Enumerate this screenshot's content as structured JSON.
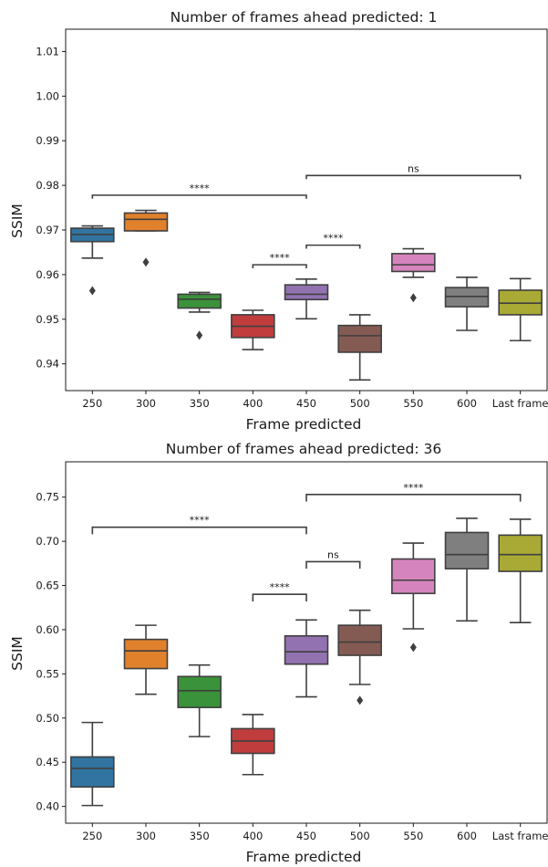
{
  "chart_data": [
    {
      "type": "box",
      "title": "Number of frames ahead predicted: 1",
      "xlabel": "Frame predicted",
      "ylabel": "SSIM",
      "ylim": [
        0.934,
        1.015
      ],
      "yticks": [
        "0.94",
        "0.95",
        "0.96",
        "0.97",
        "0.98",
        "0.99",
        "1.00",
        "1.01"
      ],
      "categories": [
        "250",
        "300",
        "350",
        "400",
        "450",
        "500",
        "550",
        "600",
        "Last frame"
      ],
      "boxes": [
        {
          "category": "250",
          "color": "#3274a1",
          "whisker_low": 0.9637,
          "q1": 0.9674,
          "median": 0.969,
          "q3": 0.9704,
          "whisker_high": 0.9709,
          "outliers": [
            0.9564
          ]
        },
        {
          "category": "300",
          "color": "#e1812c",
          "whisker_low": 0.9698,
          "q1": 0.9698,
          "median": 0.9724,
          "q3": 0.9738,
          "whisker_high": 0.9744,
          "outliers": [
            0.9628
          ]
        },
        {
          "category": "350",
          "color": "#3a923a",
          "whisker_low": 0.9516,
          "q1": 0.9525,
          "median": 0.9545,
          "q3": 0.9556,
          "whisker_high": 0.956,
          "outliers": [
            0.9464
          ]
        },
        {
          "category": "400",
          "color": "#c03d3e",
          "whisker_low": 0.9432,
          "q1": 0.9459,
          "median": 0.9484,
          "q3": 0.951,
          "whisker_high": 0.952,
          "outliers": []
        },
        {
          "category": "450",
          "color": "#9372b2",
          "whisker_low": 0.9501,
          "q1": 0.9544,
          "median": 0.9556,
          "q3": 0.9577,
          "whisker_high": 0.959,
          "outliers": []
        },
        {
          "category": "500",
          "color": "#845b53",
          "whisker_low": 0.9364,
          "q1": 0.9426,
          "median": 0.9463,
          "q3": 0.9486,
          "whisker_high": 0.951,
          "outliers": []
        },
        {
          "category": "550",
          "color": "#d684bd",
          "whisker_low": 0.9594,
          "q1": 0.9607,
          "median": 0.9622,
          "q3": 0.9647,
          "whisker_high": 0.9658,
          "outliers": [
            0.9548
          ]
        },
        {
          "category": "600",
          "color": "#7f7f7f",
          "whisker_low": 0.9475,
          "q1": 0.9528,
          "median": 0.9551,
          "q3": 0.9571,
          "whisker_high": 0.9594,
          "outliers": []
        },
        {
          "category": "Last frame",
          "color": "#a9aa35",
          "whisker_low": 0.9452,
          "q1": 0.951,
          "median": 0.9536,
          "q3": 0.9565,
          "whisker_high": 0.9591,
          "outliers": []
        }
      ],
      "annotations": [
        {
          "from": "250",
          "to": "450",
          "y": 0.9778,
          "tick": 0.0008,
          "label": "****"
        },
        {
          "from": "450",
          "to": "Last frame",
          "y": 0.9822,
          "tick": 0.0008,
          "label": "ns"
        },
        {
          "from": "400",
          "to": "450",
          "y": 0.9622,
          "tick": 0.0008,
          "label": "****"
        },
        {
          "from": "450",
          "to": "500",
          "y": 0.9666,
          "tick": 0.0008,
          "label": "****"
        }
      ]
    },
    {
      "type": "box",
      "title": "Number of frames ahead predicted: 36",
      "xlabel": "Frame predicted",
      "ylabel": "SSIM",
      "ylim": [
        0.381,
        0.79
      ],
      "yticks": [
        "0.40",
        "0.45",
        "0.50",
        "0.55",
        "0.60",
        "0.65",
        "0.70",
        "0.75"
      ],
      "categories": [
        "250",
        "300",
        "350",
        "400",
        "450",
        "500",
        "550",
        "600",
        "Last frame"
      ],
      "boxes": [
        {
          "category": "250",
          "color": "#3274a1",
          "whisker_low": 0.401,
          "q1": 0.422,
          "median": 0.443,
          "q3": 0.456,
          "whisker_high": 0.495,
          "outliers": []
        },
        {
          "category": "300",
          "color": "#e1812c",
          "whisker_low": 0.527,
          "q1": 0.556,
          "median": 0.576,
          "q3": 0.589,
          "whisker_high": 0.605,
          "outliers": []
        },
        {
          "category": "350",
          "color": "#3a923a",
          "whisker_low": 0.479,
          "q1": 0.512,
          "median": 0.531,
          "q3": 0.547,
          "whisker_high": 0.56,
          "outliers": []
        },
        {
          "category": "400",
          "color": "#c03d3e",
          "whisker_low": 0.436,
          "q1": 0.46,
          "median": 0.474,
          "q3": 0.488,
          "whisker_high": 0.504,
          "outliers": []
        },
        {
          "category": "450",
          "color": "#9372b2",
          "whisker_low": 0.524,
          "q1": 0.561,
          "median": 0.575,
          "q3": 0.593,
          "whisker_high": 0.611,
          "outliers": []
        },
        {
          "category": "500",
          "color": "#845b53",
          "whisker_low": 0.538,
          "q1": 0.571,
          "median": 0.586,
          "q3": 0.605,
          "whisker_high": 0.622,
          "outliers": [
            0.52
          ]
        },
        {
          "category": "550",
          "color": "#d684bd",
          "whisker_low": 0.601,
          "q1": 0.641,
          "median": 0.656,
          "q3": 0.68,
          "whisker_high": 0.698,
          "outliers": [
            0.58
          ]
        },
        {
          "category": "600",
          "color": "#7f7f7f",
          "whisker_low": 0.61,
          "q1": 0.669,
          "median": 0.685,
          "q3": 0.71,
          "whisker_high": 0.726,
          "outliers": []
        },
        {
          "category": "Last frame",
          "color": "#a9aa35",
          "whisker_low": 0.608,
          "q1": 0.666,
          "median": 0.685,
          "q3": 0.707,
          "whisker_high": 0.725,
          "outliers": []
        }
      ],
      "annotations": [
        {
          "from": "250",
          "to": "450",
          "y": 0.716,
          "tick": 0.008,
          "label": "****"
        },
        {
          "from": "450",
          "to": "Last frame",
          "y": 0.753,
          "tick": 0.008,
          "label": "****"
        },
        {
          "from": "400",
          "to": "450",
          "y": 0.64,
          "tick": 0.008,
          "label": "****"
        },
        {
          "from": "450",
          "to": "500",
          "y": 0.677,
          "tick": 0.008,
          "label": "ns"
        }
      ]
    }
  ]
}
